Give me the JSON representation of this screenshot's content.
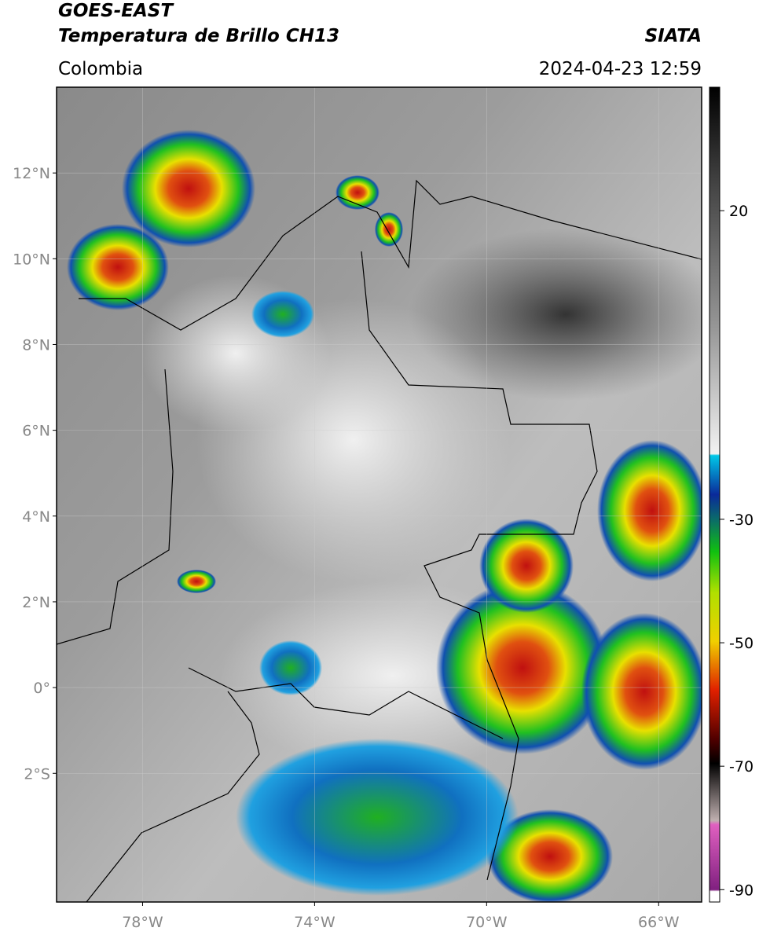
{
  "header": {
    "title": "GOES-EAST",
    "product": "Temperatura de Brillo CH13",
    "source": "SIATA",
    "region": "Colombia",
    "timestamp": "2024-04-23 12:59"
  },
  "map": {
    "xlim": [
      -80,
      -65
    ],
    "ylim": [
      -5,
      14
    ],
    "xticks": [
      {
        "value": -78,
        "label": "78°W"
      },
      {
        "value": -74,
        "label": "74°W"
      },
      {
        "value": -70,
        "label": "70°W"
      },
      {
        "value": -66,
        "label": "66°W"
      }
    ],
    "yticks": [
      {
        "value": 12,
        "label": "12°N"
      },
      {
        "value": 10,
        "label": "10°N"
      },
      {
        "value": 8,
        "label": "8°N"
      },
      {
        "value": 6,
        "label": "6°N"
      },
      {
        "value": 4,
        "label": "4°N"
      },
      {
        "value": 2,
        "label": "2°N"
      },
      {
        "value": 0,
        "label": "0°"
      },
      {
        "value": -2,
        "label": "2°S"
      }
    ],
    "colorbar": {
      "lim": [
        -92,
        40
      ],
      "ticks": [
        20,
        -30,
        -50,
        -70,
        -90
      ]
    }
  }
}
